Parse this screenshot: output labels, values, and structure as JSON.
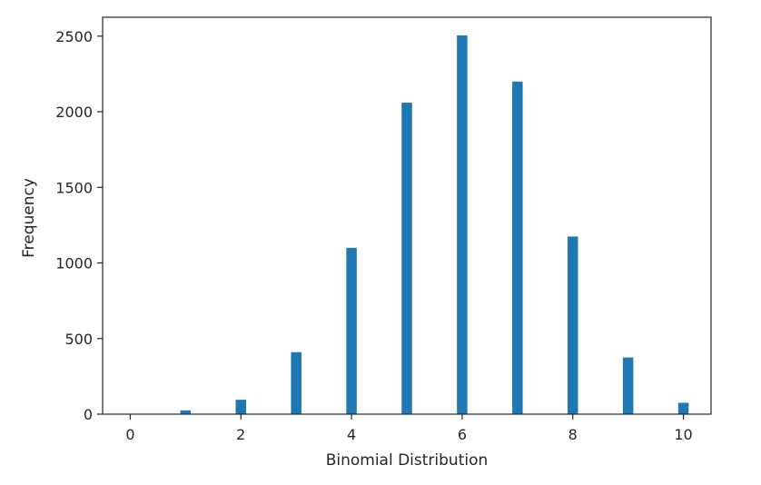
{
  "chart_data": {
    "type": "bar",
    "title": "",
    "xlabel": "Binomial Distribution",
    "ylabel": "Frequency",
    "x": [
      0,
      1,
      2,
      3,
      4,
      5,
      6,
      7,
      8,
      9,
      10
    ],
    "values": [
      0,
      25,
      95,
      410,
      1100,
      2060,
      2505,
      2200,
      1175,
      375,
      75
    ],
    "xlim": [
      -0.5,
      10.5
    ],
    "ylim": [
      0,
      2625
    ],
    "xticks": [
      0,
      2,
      4,
      6,
      8,
      10
    ],
    "yticks": [
      0,
      500,
      1000,
      1500,
      2000,
      2500
    ],
    "xtick_labels": [
      "0",
      "2",
      "4",
      "6",
      "8",
      "10"
    ],
    "ytick_labels": [
      "0",
      "500",
      "1000",
      "1500",
      "2000",
      "2500"
    ],
    "grid": false,
    "bar_color": "#1f77b4"
  }
}
